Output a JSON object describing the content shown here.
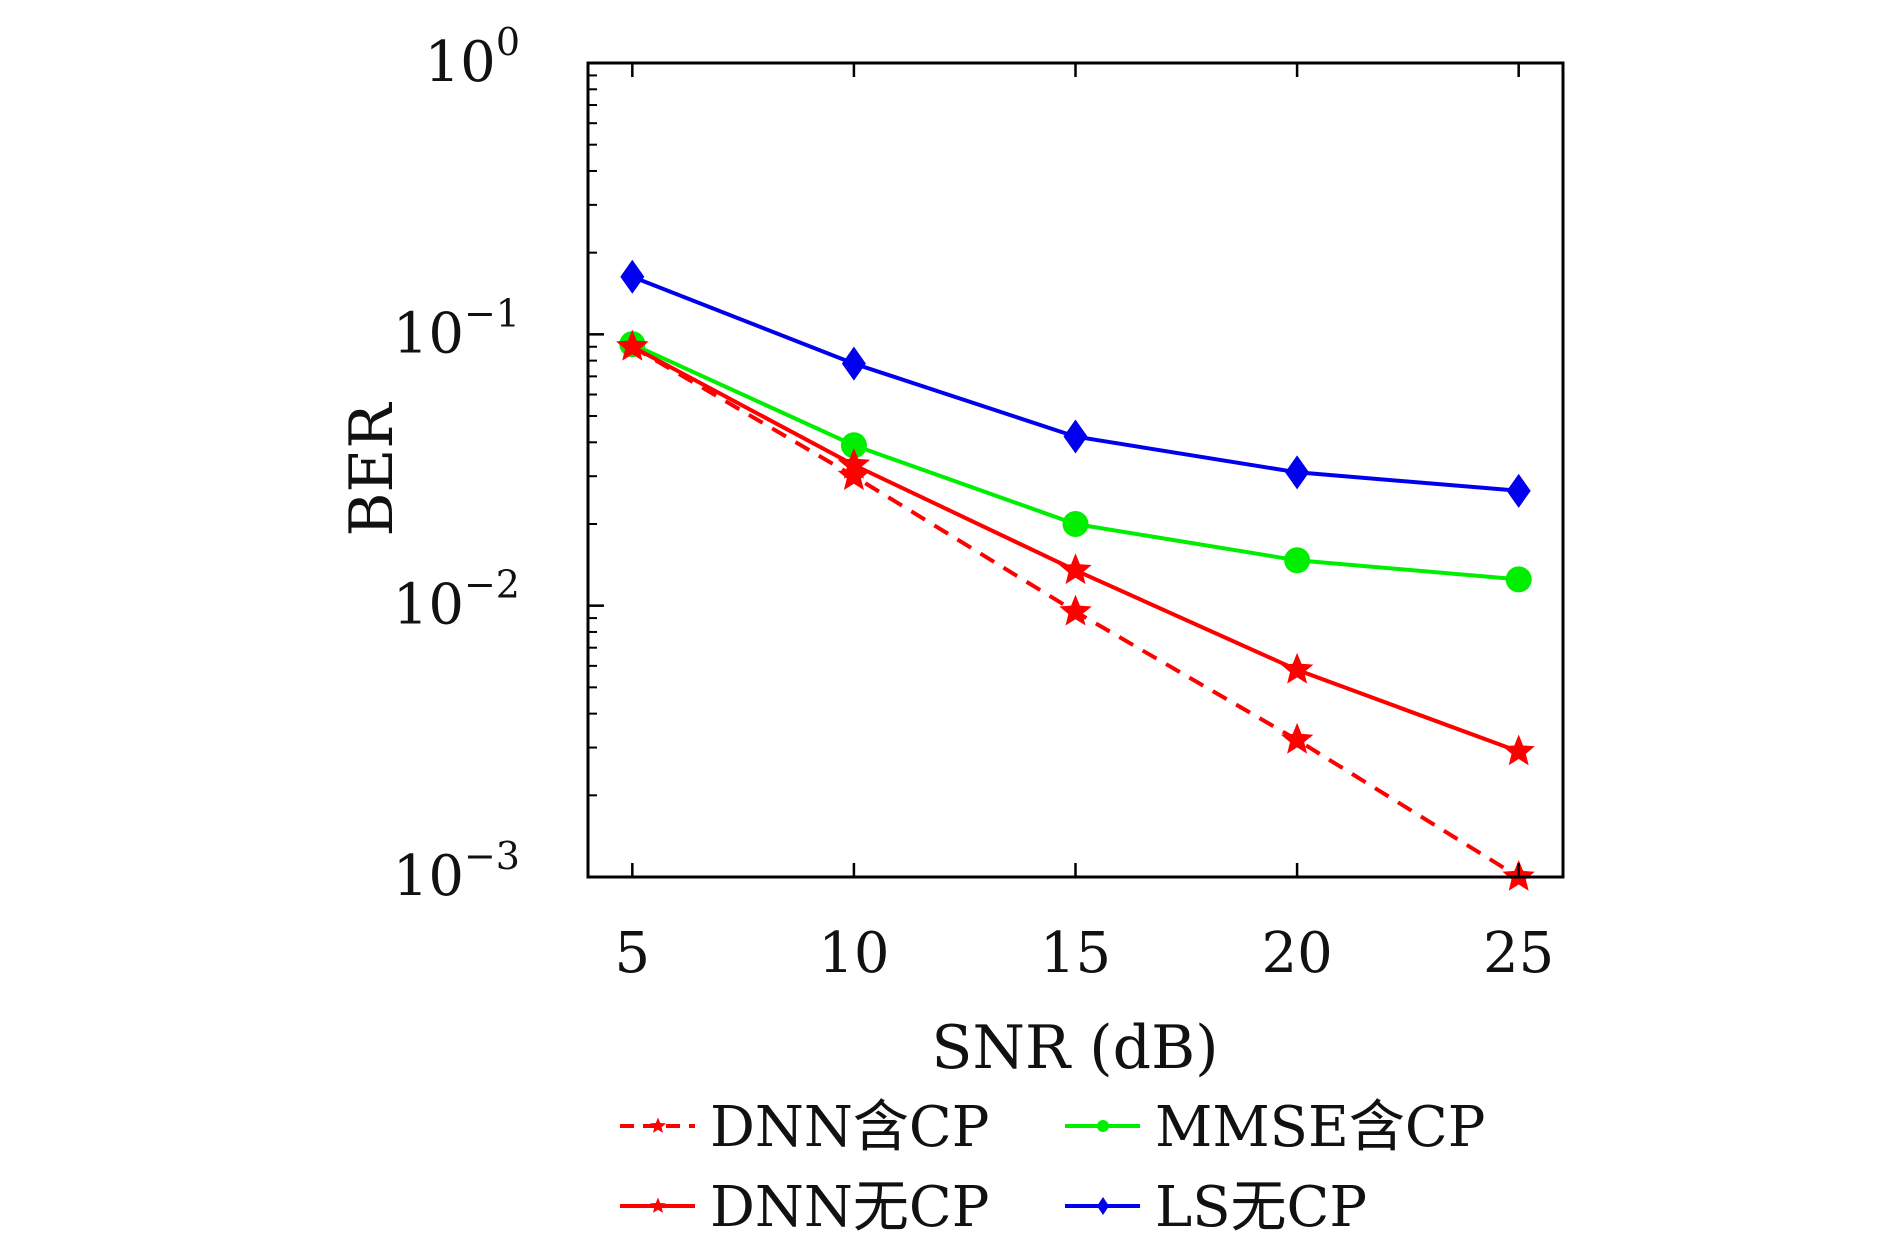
{
  "chart_data": {
    "type": "line",
    "title": "",
    "xlabel": "SNR (dB)",
    "ylabel": "BER",
    "yscale": "log",
    "xlim": [
      4,
      26
    ],
    "ylim": [
      0.001,
      1
    ],
    "xticks": [
      5,
      10,
      15,
      20,
      25
    ],
    "yticks": [
      {
        "value": 1,
        "base": "10",
        "exp": "0"
      },
      {
        "value": 0.1,
        "base": "10",
        "exp": "−1"
      },
      {
        "value": 0.01,
        "base": "10",
        "exp": "−2"
      },
      {
        "value": 0.001,
        "base": "10",
        "exp": "−3"
      }
    ],
    "grid": false,
    "legend_position": "bottom",
    "x": [
      5,
      10,
      15,
      20,
      25
    ],
    "series": [
      {
        "name": "DNN含CP",
        "color": "#ff0000",
        "dash": "dashed",
        "marker": "star",
        "values": [
          0.09,
          0.03,
          0.0095,
          0.0032,
          0.001
        ]
      },
      {
        "name": "MMSE含CP",
        "color": "#00ee00",
        "dash": "solid",
        "marker": "circle",
        "values": [
          0.092,
          0.039,
          0.02,
          0.0147,
          0.0125
        ]
      },
      {
        "name": "DNN无CP",
        "color": "#ff0000",
        "dash": "solid",
        "marker": "star",
        "values": [
          0.09,
          0.033,
          0.0135,
          0.0058,
          0.0029
        ]
      },
      {
        "name": "LS无CP",
        "color": "#0000ee",
        "dash": "solid",
        "marker": "diamond",
        "values": [
          0.163,
          0.078,
          0.042,
          0.031,
          0.0265
        ]
      }
    ]
  }
}
